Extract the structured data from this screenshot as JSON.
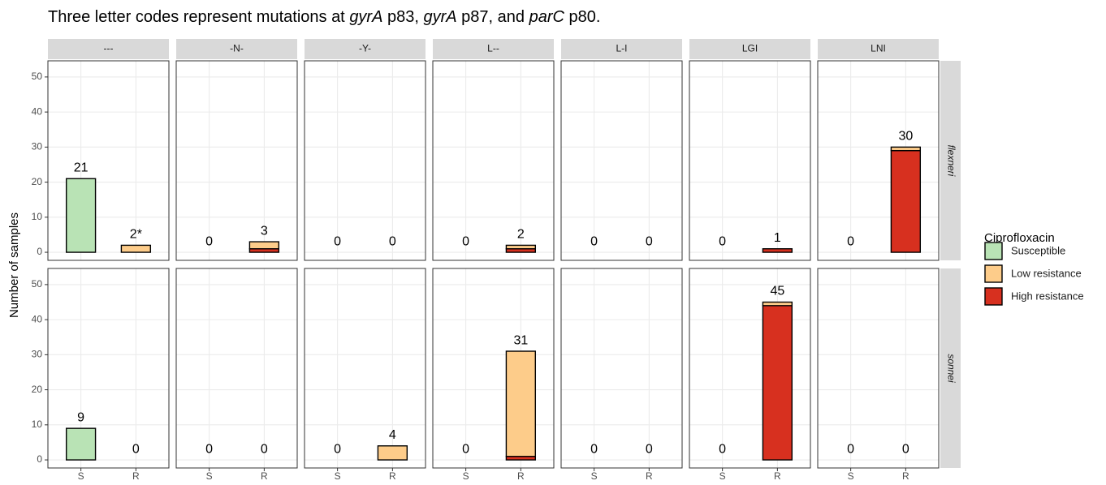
{
  "chart_data": {
    "type": "bar",
    "stacked": true,
    "title_parts": [
      {
        "text": "Three letter codes represent mutations at "
      },
      {
        "text": "gyrA",
        "italic": true
      },
      {
        "text": " p83, "
      },
      {
        "text": "gyrA",
        "italic": true
      },
      {
        "text": " p87, and "
      },
      {
        "text": "parC",
        "italic": true
      },
      {
        "text": " p80."
      }
    ],
    "ylabel": "Number of samples",
    "categories": [
      "S",
      "R"
    ],
    "columns": [
      "---",
      "-N-",
      "-Y-",
      "L--",
      "L-I",
      "LGI",
      "LNI"
    ],
    "ylim": [
      -2.3,
      54.6
    ],
    "yticks": [
      0,
      10,
      20,
      30,
      40,
      50
    ],
    "grid": true,
    "legend": {
      "title": "Ciprofloxacin",
      "position": "right"
    },
    "series": [
      {
        "name": "Susceptible",
        "color": "#b9e3b5"
      },
      {
        "name": "Low resistance",
        "color": "#fdcc8a"
      },
      {
        "name": "High resistance",
        "color": "#d7301f"
      }
    ],
    "rows": [
      {
        "name": "flexneri",
        "panels": [
          {
            "values": [
              [
                21,
                0
              ],
              [
                0,
                2
              ],
              [
                0,
                0
              ]
            ],
            "labels": [
              "21",
              "2*"
            ]
          },
          {
            "values": [
              [
                0,
                0
              ],
              [
                0,
                2
              ],
              [
                0,
                1
              ]
            ],
            "labels": [
              "0",
              "3"
            ]
          },
          {
            "values": [
              [
                0,
                0
              ],
              [
                0,
                0
              ],
              [
                0,
                0
              ]
            ],
            "labels": [
              "0",
              "0"
            ]
          },
          {
            "values": [
              [
                0,
                0
              ],
              [
                0,
                1
              ],
              [
                0,
                1
              ]
            ],
            "labels": [
              "0",
              "2"
            ]
          },
          {
            "values": [
              [
                0,
                0
              ],
              [
                0,
                0
              ],
              [
                0,
                0
              ]
            ],
            "labels": [
              "0",
              "0"
            ]
          },
          {
            "values": [
              [
                0,
                0
              ],
              [
                0,
                0
              ],
              [
                0,
                1
              ]
            ],
            "labels": [
              "0",
              "1"
            ]
          },
          {
            "values": [
              [
                0,
                0
              ],
              [
                0,
                1
              ],
              [
                0,
                29
              ]
            ],
            "labels": [
              "0",
              "30"
            ]
          }
        ]
      },
      {
        "name": "sonnei",
        "panels": [
          {
            "values": [
              [
                9,
                0
              ],
              [
                0,
                0
              ],
              [
                0,
                0
              ]
            ],
            "labels": [
              "9",
              "0"
            ]
          },
          {
            "values": [
              [
                0,
                0
              ],
              [
                0,
                0
              ],
              [
                0,
                0
              ]
            ],
            "labels": [
              "0",
              "0"
            ]
          },
          {
            "values": [
              [
                0,
                0
              ],
              [
                0,
                4
              ],
              [
                0,
                0
              ]
            ],
            "labels": [
              "0",
              "4"
            ]
          },
          {
            "values": [
              [
                0,
                0
              ],
              [
                0,
                30
              ],
              [
                0,
                1
              ]
            ],
            "labels": [
              "0",
              "31"
            ]
          },
          {
            "values": [
              [
                0,
                0
              ],
              [
                0,
                0
              ],
              [
                0,
                0
              ]
            ],
            "labels": [
              "0",
              "0"
            ]
          },
          {
            "values": [
              [
                0,
                0
              ],
              [
                0,
                1
              ],
              [
                0,
                44
              ]
            ],
            "labels": [
              "0",
              "45"
            ]
          },
          {
            "values": [
              [
                0,
                0
              ],
              [
                0,
                0
              ],
              [
                0,
                0
              ]
            ],
            "labels": [
              "0",
              "0"
            ]
          }
        ]
      }
    ]
  }
}
